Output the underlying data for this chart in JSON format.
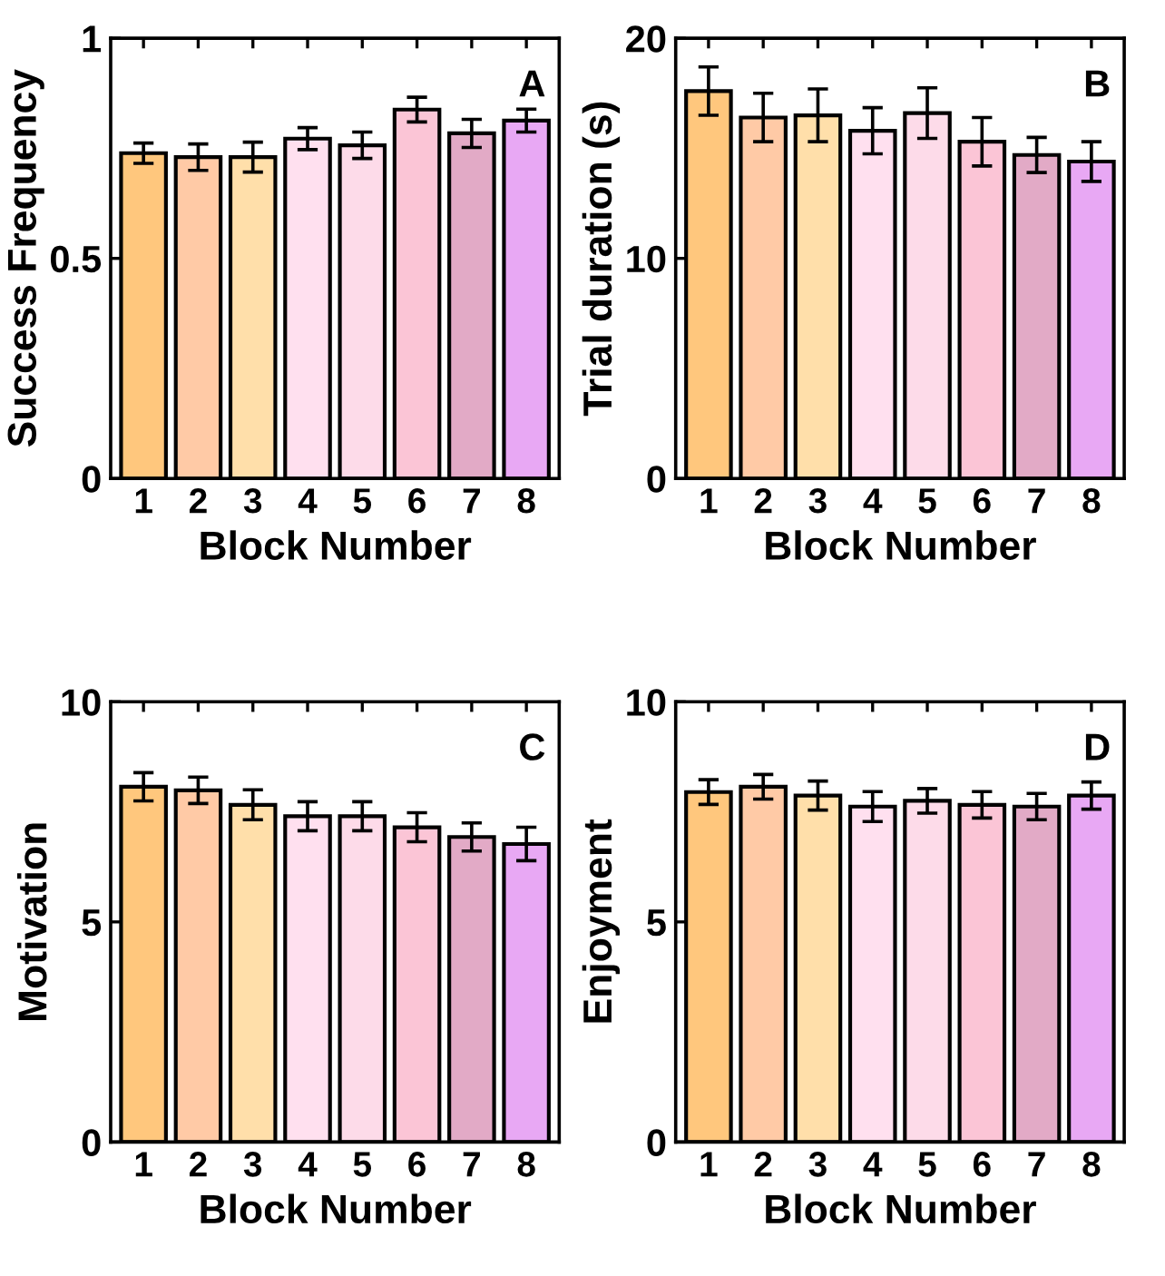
{
  "chart_data": [
    {
      "type": "bar",
      "xlabel": "Block Number",
      "ylabel": "Success Frequency",
      "annotations": [
        "A"
      ],
      "categories": [
        "1",
        "2",
        "3",
        "4",
        "5",
        "6",
        "7",
        "8"
      ],
      "values": [
        0.739,
        0.73,
        0.73,
        0.772,
        0.757,
        0.838,
        0.784,
        0.813
      ],
      "errors": [
        0.023,
        0.03,
        0.034,
        0.025,
        0.03,
        0.028,
        0.032,
        0.026
      ],
      "colors": [
        "#ffc77d",
        "#ffcaa6",
        "#ffdfaa",
        "#ffe0ef",
        "#fddbe9",
        "#fbc5d6",
        "#e2aac6",
        "#e8a8f4"
      ],
      "ylim": [
        0,
        1
      ],
      "yticks": [
        0,
        0.5,
        1
      ],
      "grid": false,
      "legend": false
    },
    {
      "type": "bar",
      "xlabel": "Block Number",
      "ylabel": "Trial duration (s)",
      "annotations": [
        "B"
      ],
      "categories": [
        "1",
        "2",
        "3",
        "4",
        "5",
        "6",
        "7",
        "8"
      ],
      "values": [
        17.6,
        16.4,
        16.5,
        15.8,
        16.6,
        15.3,
        14.7,
        14.4
      ],
      "errors": [
        1.1,
        1.1,
        1.2,
        1.05,
        1.15,
        1.1,
        0.8,
        0.9
      ],
      "colors": [
        "#ffc77d",
        "#ffcaa6",
        "#ffdfaa",
        "#ffe0ef",
        "#fddbe9",
        "#fbc5d6",
        "#e2aac6",
        "#e8a8f4"
      ],
      "ylim": [
        0,
        20
      ],
      "yticks": [
        0,
        10,
        20
      ],
      "grid": false,
      "legend": false
    },
    {
      "type": "bar",
      "xlabel": "Block Number",
      "ylabel": "Motivation",
      "annotations": [
        "C"
      ],
      "categories": [
        "1",
        "2",
        "3",
        "4",
        "5",
        "6",
        "7",
        "8"
      ],
      "values": [
        8.07,
        7.99,
        7.66,
        7.4,
        7.4,
        7.15,
        6.93,
        6.77
      ],
      "errors": [
        0.32,
        0.3,
        0.34,
        0.33,
        0.33,
        0.33,
        0.32,
        0.38
      ],
      "colors": [
        "#ffc77d",
        "#ffcaa6",
        "#ffdfaa",
        "#ffe0ef",
        "#fddbe9",
        "#fbc5d6",
        "#e2aac6",
        "#e8a8f4"
      ],
      "ylim": [
        0,
        10
      ],
      "yticks": [
        0,
        5,
        10
      ],
      "grid": false,
      "legend": false
    },
    {
      "type": "bar",
      "xlabel": "Block Number",
      "ylabel": "Enjoyment",
      "annotations": [
        "D"
      ],
      "categories": [
        "1",
        "2",
        "3",
        "4",
        "5",
        "6",
        "7",
        "8"
      ],
      "values": [
        7.95,
        8.07,
        7.87,
        7.62,
        7.75,
        7.66,
        7.62,
        7.87
      ],
      "errors": [
        0.28,
        0.28,
        0.33,
        0.34,
        0.28,
        0.3,
        0.3,
        0.31
      ],
      "colors": [
        "#ffc77d",
        "#ffcaa6",
        "#ffdfaa",
        "#ffe0ef",
        "#fddbe9",
        "#fbc5d6",
        "#e2aac6",
        "#e8a8f4"
      ],
      "ylim": [
        0,
        10
      ],
      "yticks": [
        0,
        5,
        10
      ],
      "grid": false,
      "legend": false
    }
  ]
}
